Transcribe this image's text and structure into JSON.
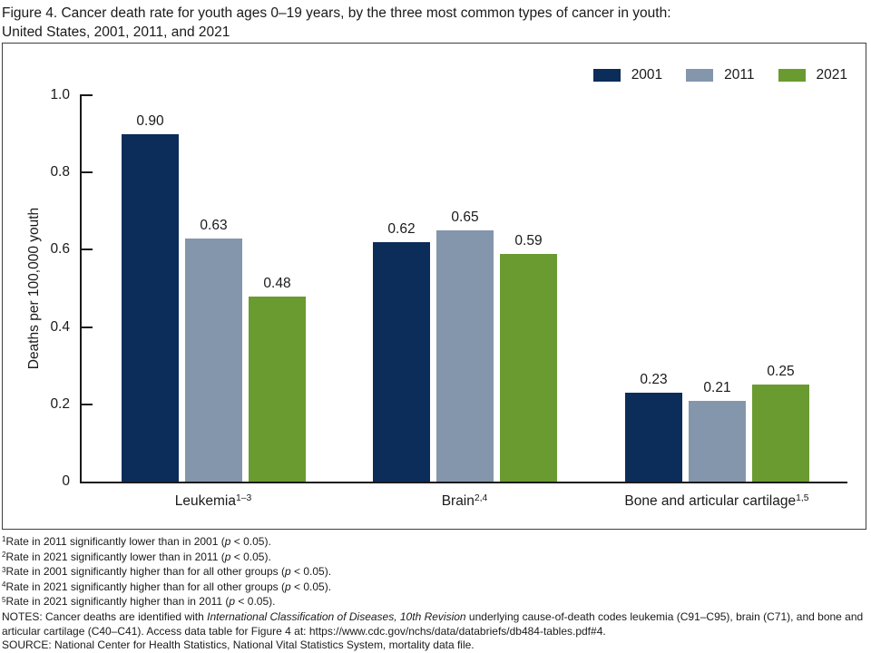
{
  "title": {
    "line1": "Figure 4. Cancer death rate for youth ages 0–19 years, by the three most common types of cancer in youth:",
    "line2": "United States, 2001, 2011, and 2021"
  },
  "chart_data": {
    "type": "bar",
    "title": "Figure 4. Cancer death rate for youth ages 0–19 years, by the three most common types of cancer in youth: United States, 2001, 2011, and 2021",
    "categories": [
      {
        "label": "Leukemia",
        "sup": "1–3"
      },
      {
        "label": "Brain",
        "sup": "2,4"
      },
      {
        "label": "Bone and articular cartilage",
        "sup": "1,5"
      }
    ],
    "series": [
      {
        "name": "2001",
        "color": "#0c2c5a",
        "values": [
          0.9,
          0.62,
          0.23
        ]
      },
      {
        "name": "2011",
        "color": "#8496ac",
        "values": [
          0.63,
          0.65,
          0.21
        ]
      },
      {
        "name": "2021",
        "color": "#699b31",
        "values": [
          0.48,
          0.59,
          0.25
        ]
      }
    ],
    "ylabel": "Deaths per 100,000 youth",
    "xlabel": "",
    "ylim": [
      0,
      1.0
    ],
    "yticks": [
      "0",
      "0.2",
      "0.4",
      "0.6",
      "0.8",
      "1.0"
    ],
    "grid": false,
    "legend_position": "top-right",
    "value_label_format": "2-decimals"
  },
  "footnotes": [
    {
      "sup": "1",
      "segments": [
        {
          "t": "Rate in 2011 significantly lower than in 2001 ("
        },
        {
          "t": "p",
          "italic": true
        },
        {
          "t": " < 0.05)."
        }
      ]
    },
    {
      "sup": "2",
      "segments": [
        {
          "t": "Rate in 2021 significantly lower than in 2011 ("
        },
        {
          "t": "p",
          "italic": true
        },
        {
          "t": " < 0.05)."
        }
      ]
    },
    {
      "sup": "3",
      "segments": [
        {
          "t": "Rate in 2001 significantly higher than for all other groups ("
        },
        {
          "t": "p",
          "italic": true
        },
        {
          "t": " < 0.05)."
        }
      ]
    },
    {
      "sup": "4",
      "segments": [
        {
          "t": "Rate in 2021 significantly higher than for all other groups ("
        },
        {
          "t": "p",
          "italic": true
        },
        {
          "t": " < 0.05)."
        }
      ]
    },
    {
      "sup": "5",
      "segments": [
        {
          "t": "Rate in 2021 significantly higher than in 2011 ("
        },
        {
          "t": "p",
          "italic": true
        },
        {
          "t": " < 0.05)."
        }
      ]
    }
  ],
  "notes": {
    "segments": [
      {
        "t": "NOTES: Cancer deaths are identified with "
      },
      {
        "t": "International Classification of Diseases, 10th Revision",
        "italic": true
      },
      {
        "t": " underlying cause-of-death codes leukemia (C91–C95), brain (C71), and bone and articular cartilage (C40–C41). Access data table for Figure 4 at: https://www.cdc.gov/nchs/data/databriefs/db484-tables.pdf#4."
      }
    ]
  },
  "source": "SOURCE: National Center for Health Statistics, National Vital Statistics System, mortality data file."
}
